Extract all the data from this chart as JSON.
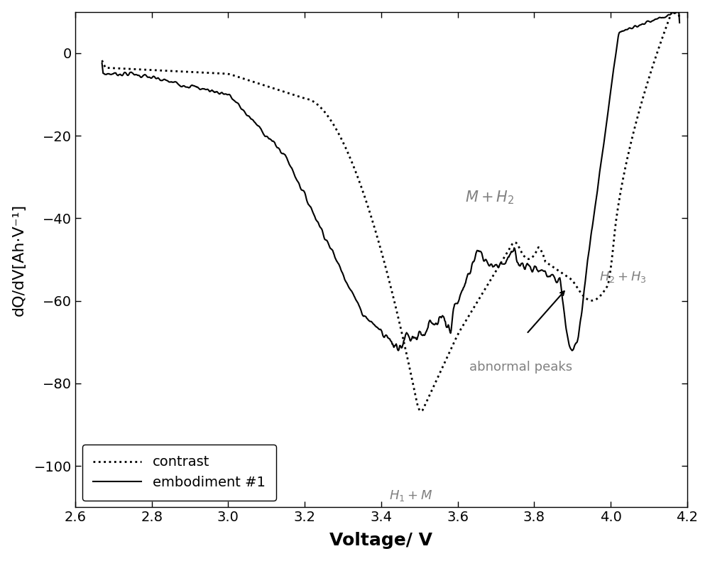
{
  "title": "",
  "xlabel": "Voltage/ V",
  "ylabel": "dQ/dV[Ah·V⁻¹]",
  "xlim": [
    2.6,
    4.2
  ],
  "ylim": [
    -110,
    10
  ],
  "yticks": [
    0,
    -20,
    -40,
    -60,
    -80,
    -100
  ],
  "xticks": [
    2.6,
    2.8,
    3.0,
    3.2,
    3.4,
    3.6,
    3.8,
    4.0,
    4.2
  ],
  "bg_color": "#ffffff",
  "line_color": "#000000",
  "annotation_color": "#808080",
  "xlabel_fontsize": 18,
  "ylabel_fontsize": 16,
  "tick_fontsize": 14,
  "legend_fontsize": 14
}
